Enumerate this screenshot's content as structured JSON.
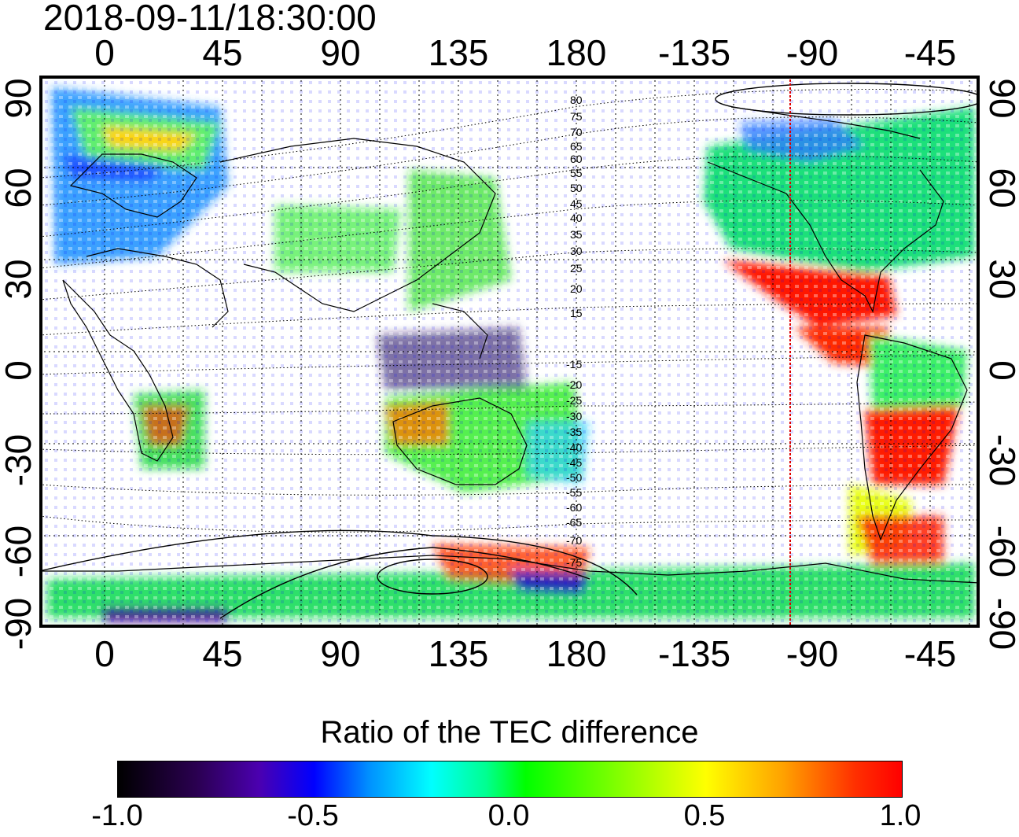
{
  "title": "2018-09-11/18:30:00",
  "lon_ticks": [
    "0",
    "45",
    "90",
    "135",
    "180",
    "-135",
    "-90",
    "-45"
  ],
  "lat_ticks": [
    "90",
    "60",
    "30",
    "0",
    "-30",
    "-60",
    "-90"
  ],
  "contour_labels_north": [
    "80",
    "75",
    "70",
    "65",
    "60",
    "55",
    "50",
    "45",
    "40",
    "35",
    "30",
    "25",
    "20",
    "15"
  ],
  "contour_labels_south": [
    "-15",
    "-20",
    "-25",
    "-30",
    "-35",
    "-40",
    "-45",
    "-50",
    "-55",
    "-60",
    "-65",
    "-70",
    "-75"
  ],
  "colorbar": {
    "title": "Ratio of the TEC difference",
    "ticks": [
      "-1.0",
      "-0.5",
      "0.0",
      "0.5",
      "1.0"
    ],
    "colors": [
      "#000000",
      "#4b00b0",
      "#0000ff",
      "#00ffff",
      "#00ff00",
      "#ffff00",
      "#ff0000"
    ]
  },
  "map": {
    "projection": "equirectangular",
    "lon_range": [
      -20,
      340
    ],
    "lat_range": [
      -90,
      90
    ],
    "terminator_longitude": "-97.5",
    "terminator_color": "#dd0000"
  }
}
